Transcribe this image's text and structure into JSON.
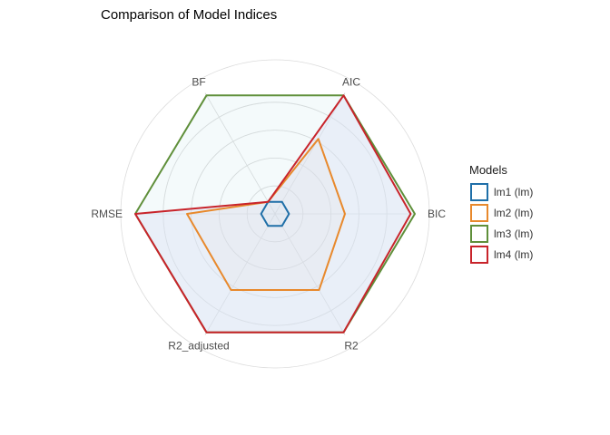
{
  "chart_data": {
    "type": "radar",
    "title": "Comparison of Model Indices",
    "axes": [
      "AIC",
      "BIC",
      "R2",
      "R2_adjusted",
      "RMSE",
      "BF"
    ],
    "range": [
      0,
      1
    ],
    "grid": true,
    "legend": {
      "title": "Models",
      "position": "right"
    },
    "series": [
      {
        "name": "lm1 (lm)",
        "color": "#1f6fa8",
        "values": [
          0.1,
          0.1,
          0.1,
          0.1,
          0.1,
          0.1
        ]
      },
      {
        "name": "lm2 (lm)",
        "color": "#e8892c",
        "values": [
          0.62,
          0.5,
          0.63,
          0.63,
          0.63,
          0.1
        ]
      },
      {
        "name": "lm3 (lm)",
        "color": "#5f8f3a",
        "values": [
          0.98,
          1.0,
          0.98,
          0.98,
          1.0,
          0.98
        ]
      },
      {
        "name": "lm4 (lm)",
        "color": "#c8242b",
        "values": [
          0.98,
          0.97,
          0.98,
          0.98,
          1.0,
          0.1
        ]
      }
    ]
  }
}
